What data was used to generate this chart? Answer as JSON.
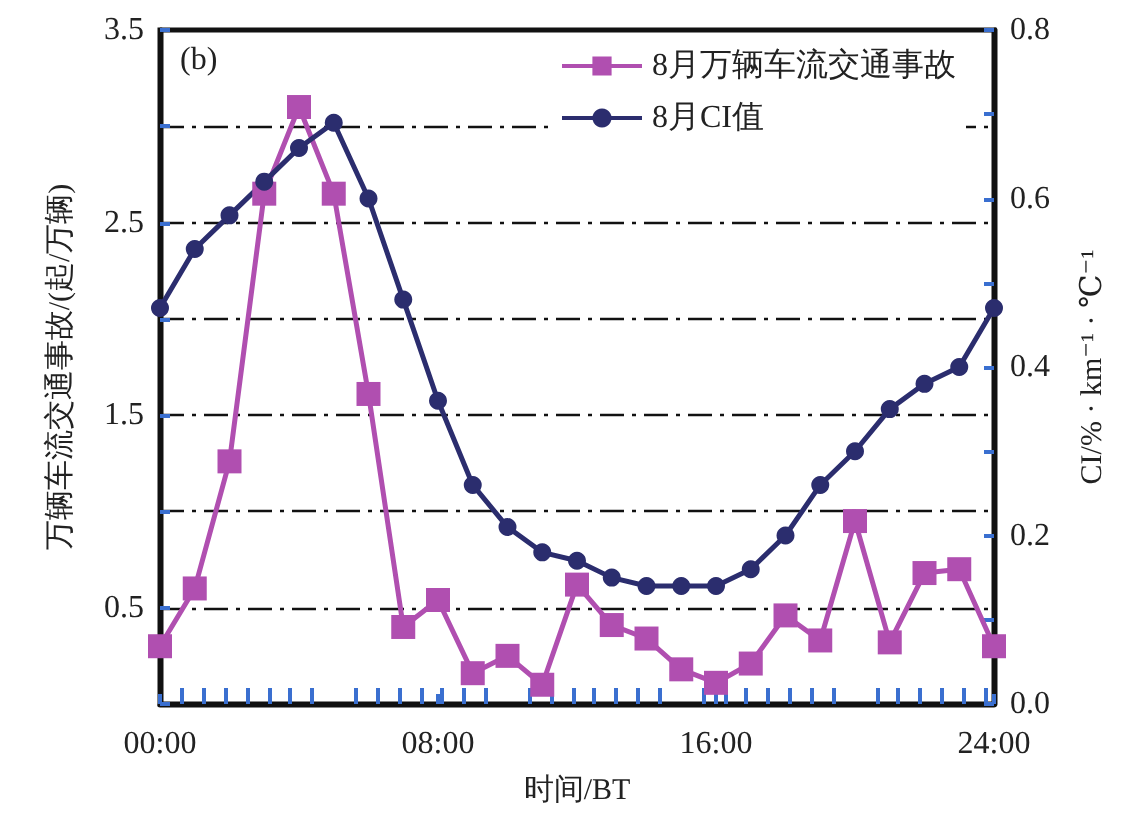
{
  "chart_data": {
    "type": "line",
    "xlabel": "时间/BT",
    "ylabel": "万辆车流交通事故/(起/万辆)",
    "y2label": "CI/% · km⁻¹ · ℃⁻¹",
    "annotations": [
      "(b)"
    ],
    "x": [
      0,
      1,
      2,
      3,
      4,
      5,
      6,
      7,
      8,
      9,
      10,
      11,
      12,
      13,
      14,
      15,
      16,
      17,
      18,
      19,
      20,
      21,
      22,
      23,
      24
    ],
    "series": [
      {
        "name": "8月万辆车流交通事故",
        "color": "#b04fb0",
        "marker": "square",
        "values": [
          0.3,
          0.6,
          1.26,
          2.65,
          3.1,
          2.65,
          1.61,
          0.4,
          0.54,
          0.16,
          0.25,
          0.1,
          0.62,
          0.41,
          0.34,
          0.18,
          0.11,
          0.21,
          0.46,
          0.33,
          0.95,
          0.32,
          0.68,
          0.7,
          0.3
        ]
      },
      {
        "name": "8月CI值",
        "color": "#2b2d6e",
        "marker": "circle",
        "axis": "y2",
        "values": [
          0.47,
          0.54,
          0.58,
          0.62,
          0.66,
          0.69,
          0.6,
          0.48,
          0.36,
          0.26,
          0.21,
          0.18,
          0.17,
          0.15,
          0.14,
          0.14,
          0.14,
          0.16,
          0.2,
          0.26,
          0.3,
          0.35,
          0.38,
          0.4,
          0.47
        ]
      }
    ],
    "xlim": [
      0,
      24
    ],
    "xticks": [
      {
        "value": 0,
        "label": "00:00"
      },
      {
        "value": 8,
        "label": "08:00"
      },
      {
        "value": 16,
        "label": "16:00"
      },
      {
        "value": 24,
        "label": "24:00"
      }
    ],
    "ylim": [
      0,
      3.5
    ],
    "yticks": [
      {
        "value": 0,
        "label": null
      },
      0.5,
      {
        "value": 1,
        "label": null
      },
      1.5,
      {
        "value": 2,
        "label": null
      },
      2.5,
      {
        "value": 3,
        "label": null
      },
      3.5
    ],
    "y2lim": [
      0,
      0.8
    ],
    "y2ticks": [
      {
        "value": 0,
        "label": "0.0"
      },
      {
        "value": 0.1,
        "label": null
      },
      {
        "value": 0.2,
        "label": "0.2"
      },
      {
        "value": 0.3,
        "label": null
      },
      {
        "value": 0.4,
        "label": "0.4"
      },
      {
        "value": 0.5,
        "label": null
      },
      {
        "value": 0.6,
        "label": "0.6"
      },
      {
        "value": 0.7,
        "label": null
      },
      {
        "value": 0.8,
        "label": "0.8"
      }
    ],
    "grid": "y",
    "legend": "top right",
    "line_style": "solid"
  }
}
